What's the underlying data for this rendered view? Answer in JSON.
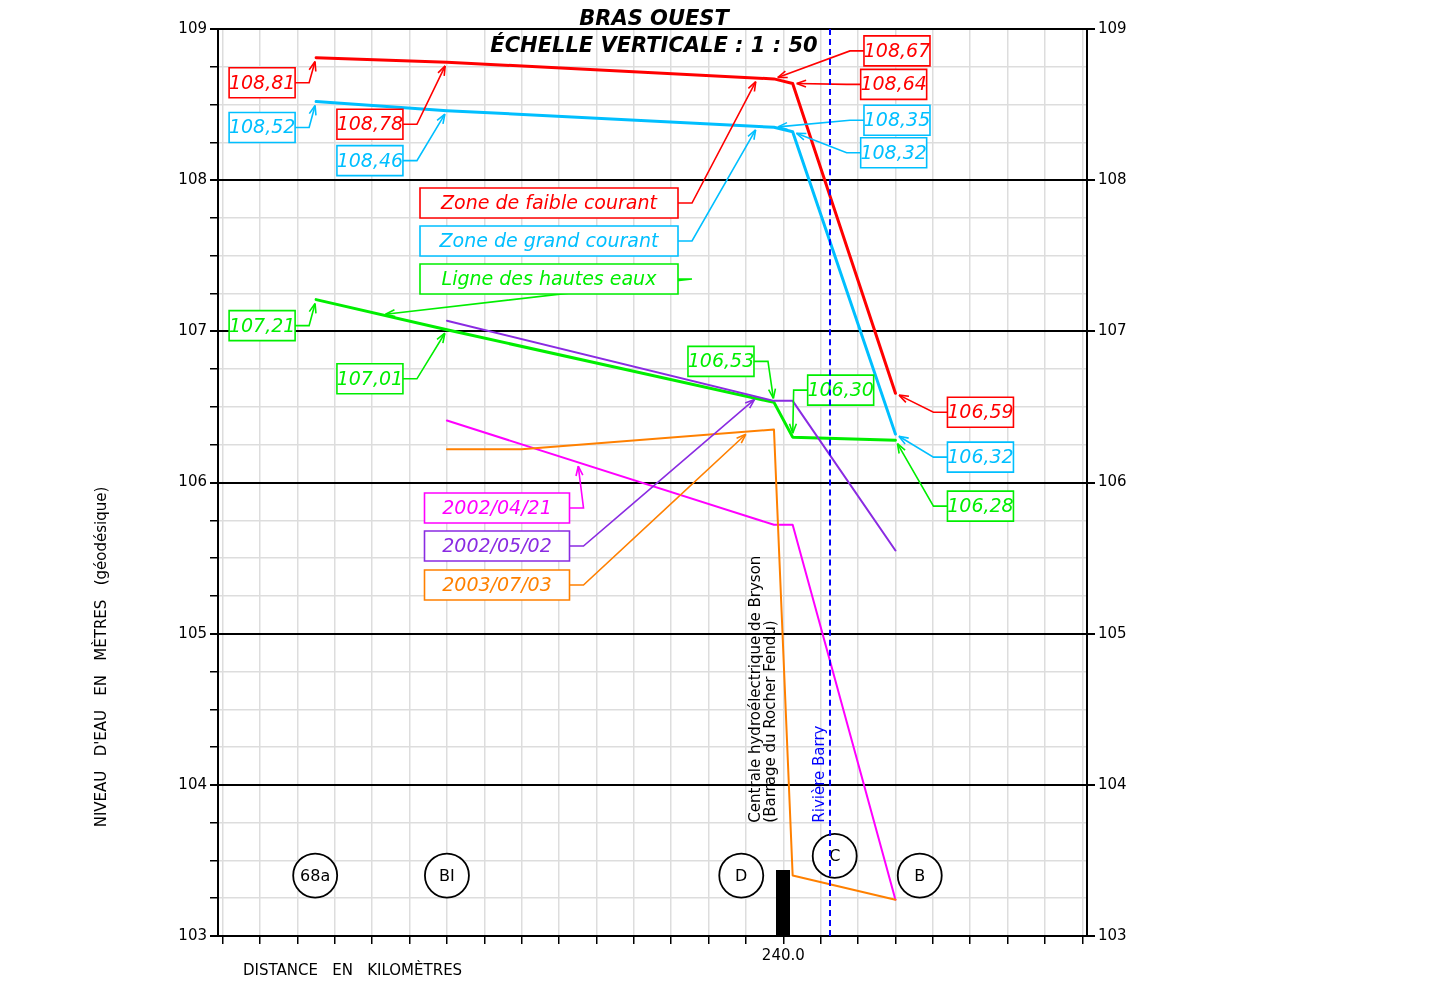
{
  "chart_data": {
    "type": "line",
    "title": "BRAS OUEST",
    "subtitle": "ÉCHELLE VERTICALE : 1 : 50",
    "xlabel": "DISTANCE EN KILOMÈTRES",
    "ylabel": "NIVEAU D'EAU EN MÈTRES (géodésique)",
    "categories": [
      null,
      null,
      null,
      null,
      null,
      null,
      null,
      null,
      null,
      null,
      null,
      null,
      null,
      null,
      null,
      null,
      null,
      null,
      null,
      null,
      null,
      null,
      null,
      null,
      null,
      null,
      null,
      null,
      null,
      null,
      null,
      null,
      null,
      null,
      null,
      null,
      null,
      null,
      null,
      null,
      null,
      null,
      null,
      null,
      null,
      null,
      null,
      null,
      null,
      null,
      null,
      null,
      null,
      null,
      null,
      null,
      null,
      null,
      null,
      null,
      "240.0",
      null,
      null,
      null,
      null,
      null,
      null,
      null,
      null,
      null,
      null,
      null,
      null,
      null,
      null,
      null,
      null,
      null,
      null,
      null,
      null,
      null,
      null,
      null,
      null,
      null,
      null,
      null,
      null,
      null,
      null,
      null,
      null
    ],
    "ylim": [
      103,
      109
    ],
    "yticks": [
      103,
      {
        "value": 103.25,
        "label": null
      },
      {
        "value": 103.5,
        "label": null
      },
      {
        "value": 103.75,
        "label": null
      },
      104,
      {
        "value": 104.25,
        "label": null
      },
      {
        "value": 104.5,
        "label": null
      },
      {
        "value": 104.75,
        "label": null
      },
      105,
      {
        "value": 105.25,
        "label": null
      },
      {
        "value": 105.5,
        "label": null
      },
      {
        "value": 105.75,
        "label": null
      },
      106,
      {
        "value": 106.25,
        "label": null
      },
      {
        "value": 106.5,
        "label": null
      },
      {
        "value": 106.75,
        "label": null
      },
      107,
      {
        "value": 107.25,
        "label": null
      },
      {
        "value": 107.5,
        "label": null
      },
      {
        "value": 107.75,
        "label": null
      },
      108,
      {
        "value": 108.25,
        "label": null
      },
      {
        "value": 108.5,
        "label": null
      },
      {
        "value": 108.75,
        "label": null
      },
      109
    ],
    "y2lim": [
      103,
      109
    ],
    "y2ticks": [
      103,
      104,
      105,
      106,
      107,
      108,
      109
    ],
    "grid": true,
    "legend": false,
    "marker": "none",
    "series": [
      {
        "name": "Zone de faible courant",
        "color": "#ff0000",
        "values": [
          null,
          null,
          null,
          null,
          null,
          null,
          null,
          null,
          null,
          null,
          108.81,
          null,
          null,
          null,
          null,
          null,
          null,
          null,
          null,
          null,
          null,
          null,
          null,
          null,
          108.78,
          null,
          null,
          null,
          null,
          null,
          null,
          null,
          null,
          null,
          null,
          null,
          null,
          null,
          null,
          null,
          null,
          null,
          null,
          null,
          null,
          null,
          null,
          null,
          null,
          null,
          null,
          null,
          null,
          null,
          null,
          null,
          null,
          null,
          null,
          108.67,
          null,
          108.64,
          null,
          null,
          null,
          null,
          null,
          null,
          null,
          null,
          null,
          null,
          106.59,
          null,
          null,
          null,
          null,
          null,
          null,
          null,
          null,
          null,
          null,
          null,
          null,
          null,
          null,
          null,
          null,
          null,
          null,
          null,
          null
        ],
        "value_labels": [
          null,
          null,
          null,
          null,
          null,
          null,
          null,
          null,
          null,
          null,
          "108,81",
          null,
          null,
          null,
          null,
          null,
          null,
          null,
          null,
          null,
          null,
          null,
          null,
          null,
          "108,78",
          null,
          null,
          null,
          null,
          null,
          null,
          null,
          null,
          null,
          null,
          null,
          null,
          null,
          null,
          null,
          null,
          null,
          null,
          null,
          null,
          null,
          null,
          null,
          null,
          null,
          null,
          null,
          null,
          null,
          null,
          null,
          null,
          null,
          null,
          "108,67",
          null,
          "108,64",
          null,
          null,
          null,
          null,
          null,
          null,
          null,
          null,
          null,
          null,
          "106,59",
          null,
          null,
          null,
          null,
          null,
          null,
          null,
          null,
          null,
          null,
          null,
          null,
          null,
          null,
          null,
          null,
          null,
          null,
          null,
          null
        ]
      },
      {
        "name": "Zone de grand courant",
        "color": "#00bfff",
        "values": [
          null,
          null,
          null,
          null,
          null,
          null,
          null,
          null,
          null,
          null,
          108.52,
          null,
          null,
          null,
          null,
          null,
          null,
          null,
          null,
          null,
          null,
          null,
          null,
          null,
          108.46,
          null,
          null,
          null,
          null,
          null,
          null,
          null,
          null,
          null,
          null,
          null,
          null,
          null,
          null,
          null,
          null,
          null,
          null,
          null,
          null,
          null,
          null,
          null,
          null,
          null,
          null,
          null,
          null,
          null,
          null,
          null,
          null,
          null,
          null,
          108.35,
          null,
          108.32,
          null,
          null,
          null,
          null,
          null,
          null,
          null,
          null,
          null,
          null,
          106.32,
          null,
          null,
          null,
          null,
          null,
          null,
          null,
          null,
          null,
          null,
          null,
          null,
          null,
          null,
          null,
          null,
          null,
          null,
          null,
          null
        ],
        "value_labels": [
          null,
          null,
          null,
          null,
          null,
          null,
          null,
          null,
          null,
          null,
          "108,52",
          null,
          null,
          null,
          null,
          null,
          null,
          null,
          null,
          null,
          null,
          null,
          null,
          null,
          "108,46",
          null,
          null,
          null,
          null,
          null,
          null,
          null,
          null,
          null,
          null,
          null,
          null,
          null,
          null,
          null,
          null,
          null,
          null,
          null,
          null,
          null,
          null,
          null,
          null,
          null,
          null,
          null,
          null,
          null,
          null,
          null,
          null,
          null,
          null,
          "108,35",
          null,
          "108,32",
          null,
          null,
          null,
          null,
          null,
          null,
          null,
          null,
          null,
          null,
          "106,32",
          null,
          null,
          null,
          null,
          null,
          null,
          null,
          null,
          null,
          null,
          null,
          null,
          null,
          null,
          null,
          null,
          null,
          null,
          null,
          null
        ]
      },
      {
        "name": "Ligne des hautes eaux",
        "color": "#00ee00",
        "values": [
          null,
          null,
          null,
          null,
          null,
          null,
          null,
          null,
          null,
          null,
          107.21,
          null,
          null,
          null,
          null,
          null,
          null,
          null,
          null,
          null,
          null,
          null,
          null,
          null,
          107.01,
          null,
          null,
          null,
          null,
          null,
          null,
          null,
          null,
          null,
          null,
          null,
          null,
          null,
          null,
          null,
          null,
          null,
          null,
          null,
          null,
          null,
          null,
          null,
          null,
          null,
          null,
          null,
          null,
          null,
          null,
          null,
          null,
          null,
          null,
          106.53,
          null,
          106.3,
          null,
          null,
          null,
          null,
          null,
          null,
          null,
          null,
          null,
          null,
          106.28,
          null,
          null,
          null,
          null,
          null,
          null,
          null,
          null,
          null,
          null,
          null,
          null,
          null,
          null,
          null,
          null,
          null,
          null,
          null,
          null
        ],
        "value_labels": [
          null,
          null,
          null,
          null,
          null,
          null,
          null,
          null,
          null,
          null,
          "107,21",
          null,
          null,
          null,
          null,
          null,
          null,
          null,
          null,
          null,
          null,
          null,
          null,
          null,
          "107,01",
          null,
          null,
          null,
          null,
          null,
          null,
          null,
          null,
          null,
          null,
          null,
          null,
          null,
          null,
          null,
          null,
          null,
          null,
          null,
          null,
          null,
          null,
          null,
          null,
          null,
          null,
          null,
          null,
          null,
          null,
          null,
          null,
          null,
          null,
          "106,53",
          null,
          "106,30",
          null,
          null,
          null,
          null,
          null,
          null,
          null,
          null,
          null,
          null,
          "106,28",
          null,
          null,
          null,
          null,
          null,
          null,
          null,
          null,
          null,
          null,
          null,
          null,
          null,
          null,
          null,
          null,
          null,
          null,
          null,
          null
        ]
      },
      {
        "name": "2002/04/21",
        "color": "#ff00ff",
        "values": [
          null,
          null,
          null,
          null,
          null,
          null,
          null,
          null,
          null,
          null,
          null,
          null,
          null,
          null,
          null,
          null,
          null,
          null,
          null,
          null,
          null,
          null,
          null,
          null,
          106.41,
          null,
          null,
          null,
          null,
          null,
          null,
          null,
          null,
          null,
          null,
          null,
          null,
          null,
          null,
          null,
          null,
          null,
          null,
          null,
          null,
          null,
          null,
          null,
          null,
          null,
          null,
          null,
          null,
          null,
          null,
          null,
          null,
          null,
          null,
          105.72,
          null,
          105.72,
          null,
          null,
          null,
          null,
          null,
          null,
          null,
          null,
          null,
          null,
          103.24,
          null,
          null,
          null,
          null,
          null,
          null,
          null,
          null,
          null,
          null,
          null,
          null,
          null,
          null,
          null,
          null,
          null,
          null,
          null,
          null
        ]
      },
      {
        "name": "2002/05/02",
        "color": "#8a2be2",
        "values": [
          null,
          null,
          null,
          null,
          null,
          null,
          null,
          null,
          null,
          null,
          null,
          null,
          null,
          null,
          null,
          null,
          null,
          null,
          null,
          null,
          null,
          null,
          null,
          null,
          107.07,
          null,
          null,
          null,
          null,
          null,
          null,
          null,
          null,
          null,
          null,
          null,
          null,
          null,
          null,
          null,
          null,
          null,
          null,
          null,
          null,
          null,
          null,
          null,
          null,
          null,
          null,
          null,
          null,
          null,
          null,
          null,
          null,
          null,
          null,
          106.54,
          null,
          106.54,
          null,
          null,
          null,
          null,
          null,
          null,
          null,
          null,
          null,
          null,
          105.55,
          null,
          null,
          null,
          null,
          null,
          null,
          null,
          null,
          null,
          null,
          null,
          null,
          null,
          null,
          null,
          null,
          null,
          null,
          null,
          null
        ]
      },
      {
        "name": "2003/07/03",
        "color": "#ff8000",
        "values": [
          null,
          null,
          null,
          null,
          null,
          null,
          null,
          null,
          null,
          null,
          null,
          null,
          null,
          null,
          null,
          null,
          null,
          null,
          null,
          null,
          null,
          null,
          null,
          null,
          106.22,
          null,
          null,
          null,
          null,
          null,
          null,
          null,
          106.22,
          null,
          null,
          null,
          null,
          null,
          null,
          null,
          null,
          null,
          null,
          null,
          null,
          null,
          null,
          null,
          null,
          null,
          null,
          null,
          null,
          null,
          null,
          null,
          null,
          null,
          null,
          106.35,
          null,
          103.4,
          null,
          null,
          null,
          null,
          null,
          null,
          null,
          null,
          null,
          null,
          103.24,
          null,
          null,
          null,
          null,
          null,
          null,
          null,
          null,
          null,
          null,
          null,
          null,
          null,
          null,
          null,
          null,
          null,
          null,
          null,
          null
        ]
      }
    ],
    "annotations": [
      "68a",
      "BI",
      "D",
      "C",
      "B",
      "Centrale hydroélectrique de Bryson",
      "(Barrage du Rocher Fendu)",
      "Rivière Barry"
    ]
  }
}
